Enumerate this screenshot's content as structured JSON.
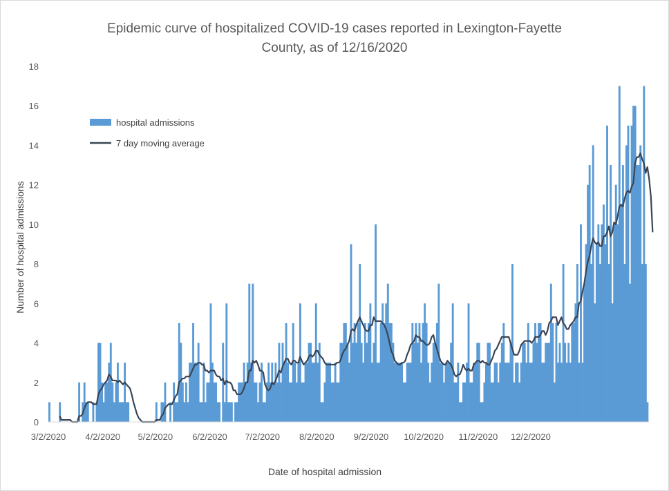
{
  "chart_data": {
    "type": "bar",
    "title_line1": "Epidemic curve of hospitalized COVID-19 cases reported in Lexington-Fayette",
    "title_line2": "County, as of 12/16/2020",
    "xlabel": "Date of hospital admission",
    "ylabel": "Number of hospital admissions",
    "ylim": [
      0,
      18
    ],
    "yticks": [
      0,
      2,
      4,
      6,
      8,
      10,
      12,
      14,
      16,
      18
    ],
    "start_date": "2020-03-02",
    "xticks": [
      "3/2/2020",
      "4/2/2020",
      "5/2/2020",
      "6/2/2020",
      "7/2/2020",
      "8/2/2020",
      "9/2/2020",
      "10/2/2020",
      "11/2/2020",
      "12/2/2020"
    ],
    "legend": {
      "position": "upper-left",
      "bar_label": "hospital admissions",
      "line_label": "7 day moving average"
    },
    "colors": {
      "bars": "#5b9bd5",
      "line": "#3a4454",
      "axis": "#d9d9d9"
    },
    "series": [
      {
        "name": "hospital admissions",
        "kind": "bar",
        "values": [
          1,
          0,
          0,
          0,
          0,
          0,
          1,
          0,
          0,
          0,
          0,
          0,
          0,
          0,
          0,
          0,
          0,
          2,
          0,
          1,
          2,
          1,
          1,
          0,
          0,
          1,
          0,
          1,
          4,
          4,
          2,
          1,
          2,
          2,
          3,
          4,
          2,
          1,
          2,
          3,
          1,
          1,
          1,
          3,
          1,
          1,
          0,
          0,
          0,
          0,
          0,
          0,
          0,
          0,
          0,
          0,
          0,
          0,
          0,
          0,
          0,
          1,
          0,
          0,
          1,
          1,
          2,
          0,
          0,
          1,
          0,
          2,
          1,
          1,
          5,
          4,
          2,
          1,
          2,
          1,
          3,
          3,
          5,
          3,
          3,
          4,
          1,
          1,
          3,
          1,
          2,
          2,
          6,
          3,
          2,
          2,
          1,
          1,
          0,
          4,
          1,
          6,
          1,
          1,
          1,
          0,
          1,
          1,
          2,
          2,
          2,
          3,
          2,
          3,
          7,
          3,
          7,
          2,
          2,
          1,
          2,
          3,
          1,
          1,
          2,
          3,
          2,
          3,
          2,
          3,
          2,
          4,
          2,
          4,
          3,
          5,
          3,
          2,
          2,
          5,
          3,
          2,
          3,
          6,
          2,
          2,
          3,
          3,
          4,
          4,
          3,
          3,
          6,
          3,
          4,
          1,
          1,
          2,
          3,
          3,
          3,
          2,
          2,
          3,
          2,
          2,
          4,
          4,
          5,
          5,
          4,
          3,
          9,
          4,
          5,
          4,
          5,
          8,
          4,
          3,
          5,
          4,
          5,
          6,
          3,
          4,
          10,
          3,
          3,
          5,
          6,
          5,
          6,
          7,
          5,
          5,
          4,
          3,
          3,
          3,
          3,
          3,
          2,
          2,
          3,
          3,
          3,
          5,
          4,
          5,
          4,
          5,
          3,
          5,
          6,
          5,
          3,
          2,
          3,
          4,
          4,
          5,
          7,
          3,
          3,
          2,
          3,
          3,
          3,
          4,
          6,
          2,
          2,
          3,
          1,
          1,
          2,
          2,
          3,
          6,
          2,
          2,
          3,
          3,
          4,
          4,
          1,
          1,
          2,
          3,
          4,
          4,
          2,
          2,
          3,
          3,
          2,
          3,
          4,
          5,
          3,
          3,
          3,
          4,
          8,
          2,
          3,
          3,
          2,
          3,
          4,
          4,
          3,
          5,
          3,
          3,
          4,
          5,
          4,
          5,
          5,
          3,
          3,
          4,
          4,
          4,
          7,
          5,
          2,
          5,
          3,
          4,
          3,
          8,
          4,
          3,
          4,
          3,
          5,
          5,
          6,
          8,
          3,
          10,
          3,
          7,
          9,
          12,
          13,
          8,
          14,
          6,
          9,
          10,
          8,
          10,
          11,
          9,
          15,
          8,
          13,
          6,
          10,
          12,
          10,
          17,
          11,
          13,
          8,
          14,
          15,
          7,
          15,
          16,
          16,
          13,
          13,
          14,
          8,
          17,
          8,
          1
        ],
        "_note": "daily admissions estimated from bar heights"
      },
      {
        "name": "7 day moving average",
        "kind": "line",
        "values": [
          null,
          null,
          null,
          null,
          null,
          null,
          0.3,
          0.1,
          0.1,
          0.1,
          0.1,
          0.1,
          0.1,
          0.0,
          0.0,
          0.0,
          0.0,
          0.3,
          0.3,
          0.4,
          0.7,
          0.9,
          1.0,
          1.0,
          1.0,
          0.9,
          0.9,
          0.9,
          1.4,
          1.6,
          1.7,
          1.9,
          2.0,
          2.1,
          2.4,
          2.3,
          2.1,
          2.1,
          2.1,
          2.0,
          2.1,
          2.0,
          1.9,
          2.0,
          1.9,
          1.8,
          1.7,
          1.4,
          1.0,
          0.7,
          0.4,
          0.2,
          0.1,
          0.0,
          0.0,
          0.0,
          0.0,
          0.0,
          0.0,
          0.0,
          0.0,
          0.1,
          0.1,
          0.1,
          0.3,
          0.4,
          0.7,
          0.8,
          0.9,
          0.9,
          0.9,
          1.1,
          1.3,
          1.4,
          2.0,
          2.1,
          2.2,
          2.2,
          2.3,
          2.3,
          2.3,
          2.5,
          2.7,
          2.9,
          2.9,
          3.0,
          3.0,
          2.9,
          2.9,
          2.6,
          2.6,
          2.5,
          2.6,
          2.6,
          2.6,
          2.4,
          2.3,
          2.3,
          2.1,
          2.2,
          1.9,
          2.1,
          2.0,
          2.0,
          1.9,
          1.6,
          1.6,
          1.4,
          1.4,
          1.4,
          1.5,
          1.7,
          2.0,
          2.0,
          2.6,
          2.6,
          3.1,
          3.0,
          3.1,
          2.9,
          2.6,
          2.6,
          2.5,
          1.9,
          1.7,
          1.6,
          1.7,
          2.0,
          1.9,
          2.1,
          2.3,
          2.6,
          2.5,
          2.8,
          3.0,
          3.2,
          3.2,
          3.0,
          2.9,
          3.1,
          3.1,
          3.0,
          3.0,
          3.3,
          3.1,
          2.9,
          3.0,
          3.1,
          3.3,
          3.4,
          3.3,
          3.4,
          3.6,
          3.6,
          3.4,
          3.3,
          3.2,
          3.0,
          2.9,
          2.9,
          2.9,
          2.9,
          2.9,
          2.9,
          3.0,
          3.0,
          3.1,
          3.4,
          3.6,
          3.7,
          3.9,
          4.1,
          4.6,
          4.7,
          4.6,
          4.9,
          5.1,
          5.3,
          5.1,
          4.9,
          4.7,
          4.6,
          4.6,
          4.9,
          4.9,
          5.3,
          5.1,
          5.1,
          5.1,
          5.1,
          5.0,
          4.9,
          4.7,
          4.4,
          4.0,
          3.6,
          3.4,
          3.1,
          3.0,
          2.9,
          2.9,
          3.0,
          3.0,
          3.1,
          3.4,
          3.6,
          3.9,
          4.0,
          4.1,
          4.4,
          4.3,
          4.3,
          4.1,
          4.1,
          4.0,
          3.9,
          3.9,
          4.0,
          4.3,
          4.4,
          4.0,
          3.7,
          3.4,
          3.1,
          3.0,
          2.9,
          2.9,
          3.1,
          3.0,
          2.9,
          2.7,
          2.4,
          2.3,
          2.4,
          2.4,
          2.6,
          2.9,
          2.7,
          2.6,
          2.7,
          2.6,
          2.6,
          2.9,
          3.0,
          3.1,
          3.1,
          3.0,
          3.1,
          3.0,
          3.0,
          2.9,
          2.9,
          3.1,
          3.3,
          3.6,
          3.7,
          3.9,
          4.1,
          4.3,
          4.3,
          4.3,
          4.3,
          4.3,
          4.0,
          3.7,
          3.4,
          3.4,
          3.4,
          3.6,
          3.9,
          4.0,
          4.1,
          4.1,
          4.1,
          4.1,
          4.0,
          4.1,
          4.3,
          4.3,
          4.3,
          4.4,
          4.6,
          4.6,
          4.4,
          4.6,
          5.0,
          5.1,
          5.3,
          5.3,
          5.3,
          4.9,
          5.1,
          5.3,
          5.0,
          4.9,
          4.7,
          4.7,
          4.9,
          5.0,
          5.1,
          5.3,
          5.3,
          6.0,
          6.1,
          6.6,
          7.0,
          7.6,
          8.1,
          8.4,
          8.9,
          9.3,
          9.1,
          9.0,
          9.1,
          8.9,
          8.9,
          9.4,
          9.4,
          9.6,
          9.9,
          9.4,
          9.6,
          10.1,
          10.0,
          10.4,
          10.9,
          11.0,
          10.9,
          11.3,
          11.6,
          11.7,
          11.6,
          11.9,
          12.1,
          13.1,
          13.4,
          13.4,
          13.6,
          13.3,
          13.1,
          12.6,
          12.9,
          12.3,
          11.4,
          9.6
        ]
      }
    ]
  }
}
